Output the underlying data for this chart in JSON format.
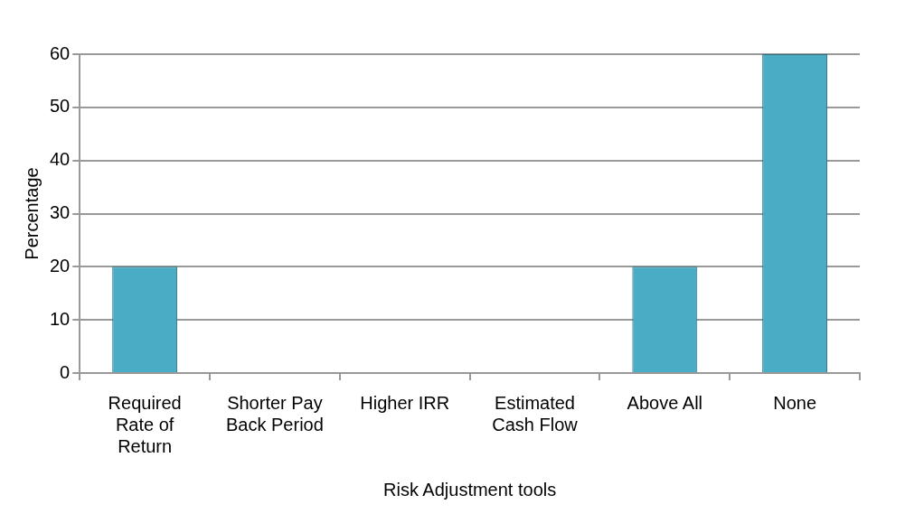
{
  "chart_data": {
    "type": "bar",
    "xlabel": "Risk Adjustment tools",
    "ylabel": "Percentage",
    "categories": [
      "Required Rate of Return",
      "Shorter Pay Back Period",
      "Higher IRR",
      "Estimated Cash Flow",
      "Above All",
      "None"
    ],
    "values": [
      20,
      0,
      null,
      0,
      20,
      60
    ],
    "color": "#4bacc6",
    "ylim": [
      0,
      60
    ],
    "yticks": [
      0,
      10,
      20,
      30,
      40,
      50,
      60
    ],
    "grid": "y",
    "legend": false
  }
}
